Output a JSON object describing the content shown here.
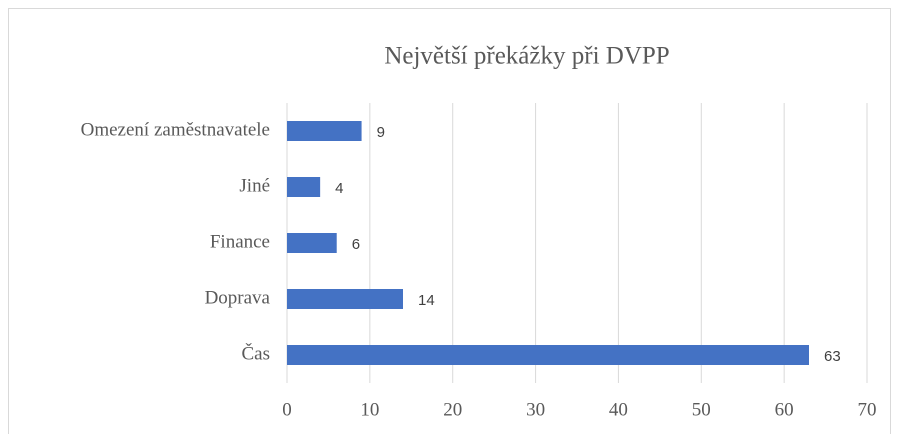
{
  "chart_data": {
    "type": "hbar",
    "title": "Největší překážky při DVPP",
    "categories": [
      "Omezení zaměstnavatele",
      "Jiné",
      "Finance",
      "Doprava",
      "Čas"
    ],
    "values": [
      9,
      4,
      6,
      14,
      63
    ],
    "color": "#4472c4",
    "xlim": [
      0,
      70
    ],
    "xticks": [
      0,
      10,
      20,
      30,
      40,
      50,
      60,
      70
    ],
    "grid": true
  }
}
